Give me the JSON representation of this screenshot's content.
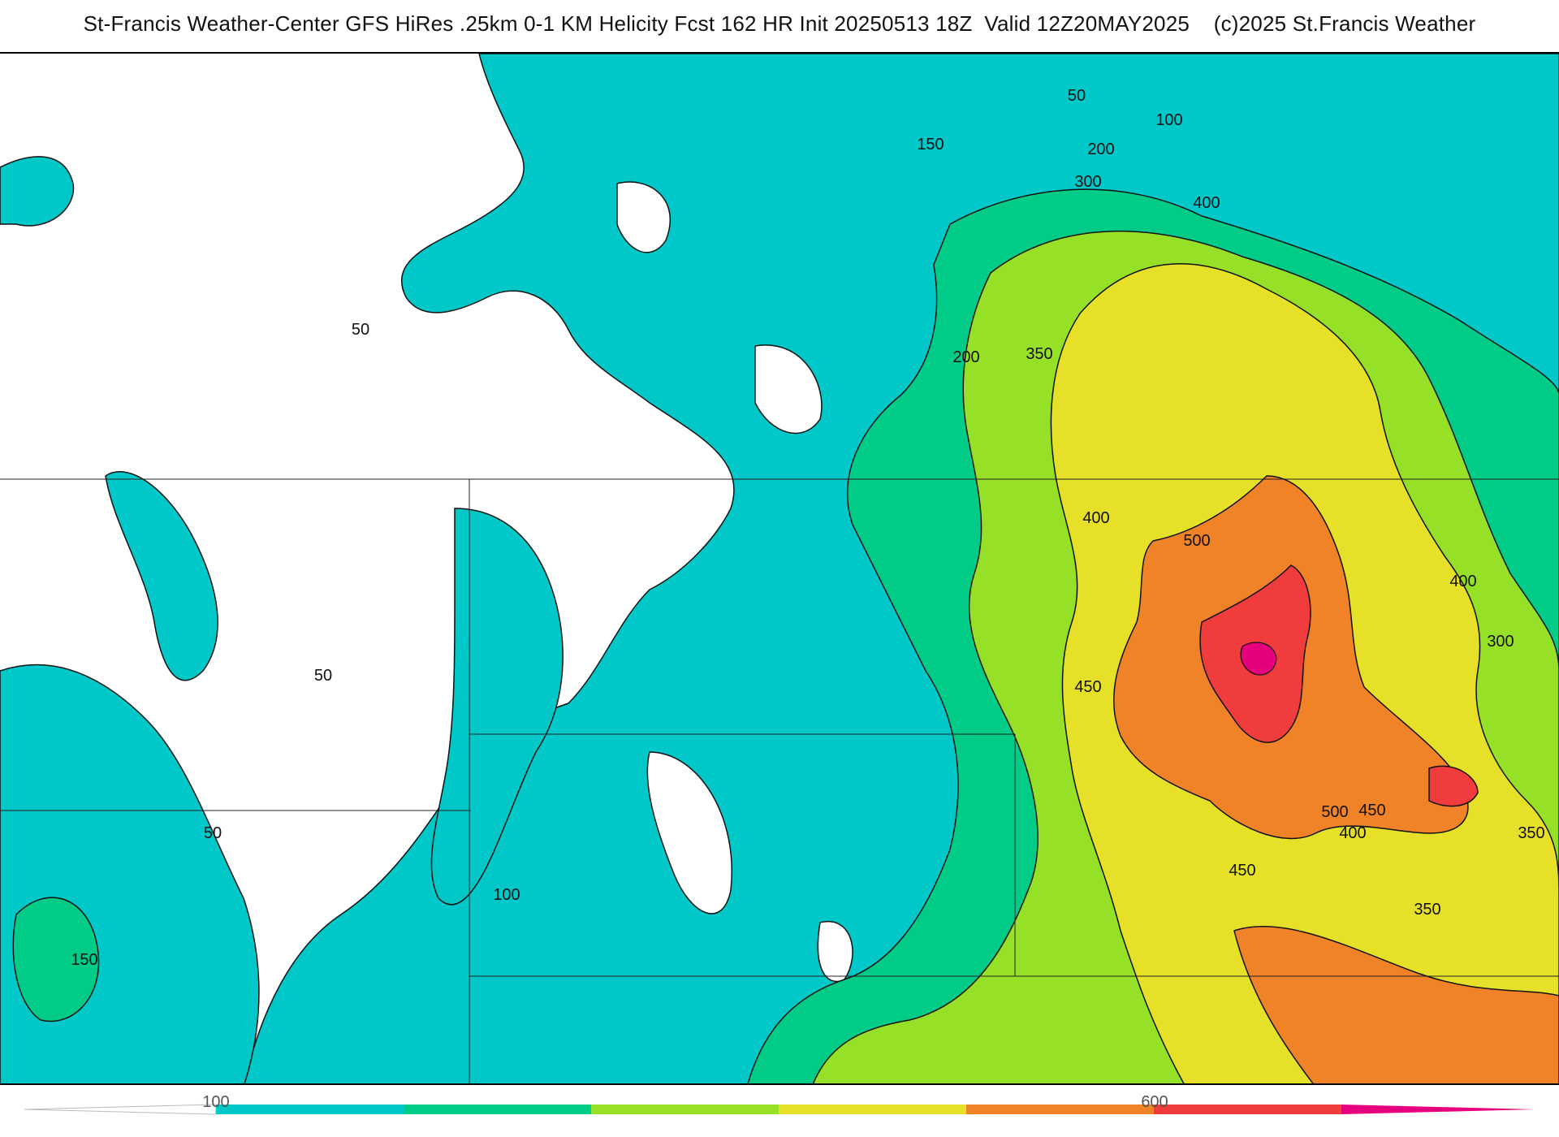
{
  "header": {
    "title": "St-Francis Weather-Center GFS HiRes .25km 0-1 KM Helicity Fcst 162 HR Init 20250513 18Z  Valid 12Z20MAY2025    (c)2025 St.Francis Weather"
  },
  "map": {
    "contour_labels": [
      {
        "id": "c50a",
        "text": "50"
      },
      {
        "id": "c100a",
        "text": "100"
      },
      {
        "id": "c150a",
        "text": "150"
      },
      {
        "id": "c200a",
        "text": "200"
      },
      {
        "id": "c300a",
        "text": "300"
      },
      {
        "id": "c400a",
        "text": "400"
      },
      {
        "id": "c50b",
        "text": "50"
      },
      {
        "id": "c200b",
        "text": "200"
      },
      {
        "id": "c350a",
        "text": "350"
      },
      {
        "id": "c400b",
        "text": "400"
      },
      {
        "id": "c500a",
        "text": "500"
      },
      {
        "id": "c400c",
        "text": "400"
      },
      {
        "id": "c300b",
        "text": "300"
      },
      {
        "id": "c50c",
        "text": "50"
      },
      {
        "id": "c450a",
        "text": "450"
      },
      {
        "id": "c50d",
        "text": "50"
      },
      {
        "id": "c500b",
        "text": "500"
      },
      {
        "id": "c450b",
        "text": "450"
      },
      {
        "id": "c400d",
        "text": "400"
      },
      {
        "id": "c350b",
        "text": "350"
      },
      {
        "id": "c100b",
        "text": "100"
      },
      {
        "id": "c450c",
        "text": "450"
      },
      {
        "id": "c150b",
        "text": "150"
      },
      {
        "id": "c350c",
        "text": "350"
      }
    ]
  },
  "colorbar": {
    "tick_labels": [
      "100",
      "600"
    ],
    "colors": [
      "#00c8c8",
      "#00cc88",
      "#96e028",
      "#e6e028",
      "#f08228",
      "#f03c3c",
      "#e6007e"
    ]
  },
  "colors": {
    "c50": "#00c8c8",
    "c150": "#00cc88",
    "c250": "#96e028",
    "c350": "#e6e028",
    "c450": "#f08228",
    "c550": "#f03c3c",
    "c650": "#e6007e"
  }
}
